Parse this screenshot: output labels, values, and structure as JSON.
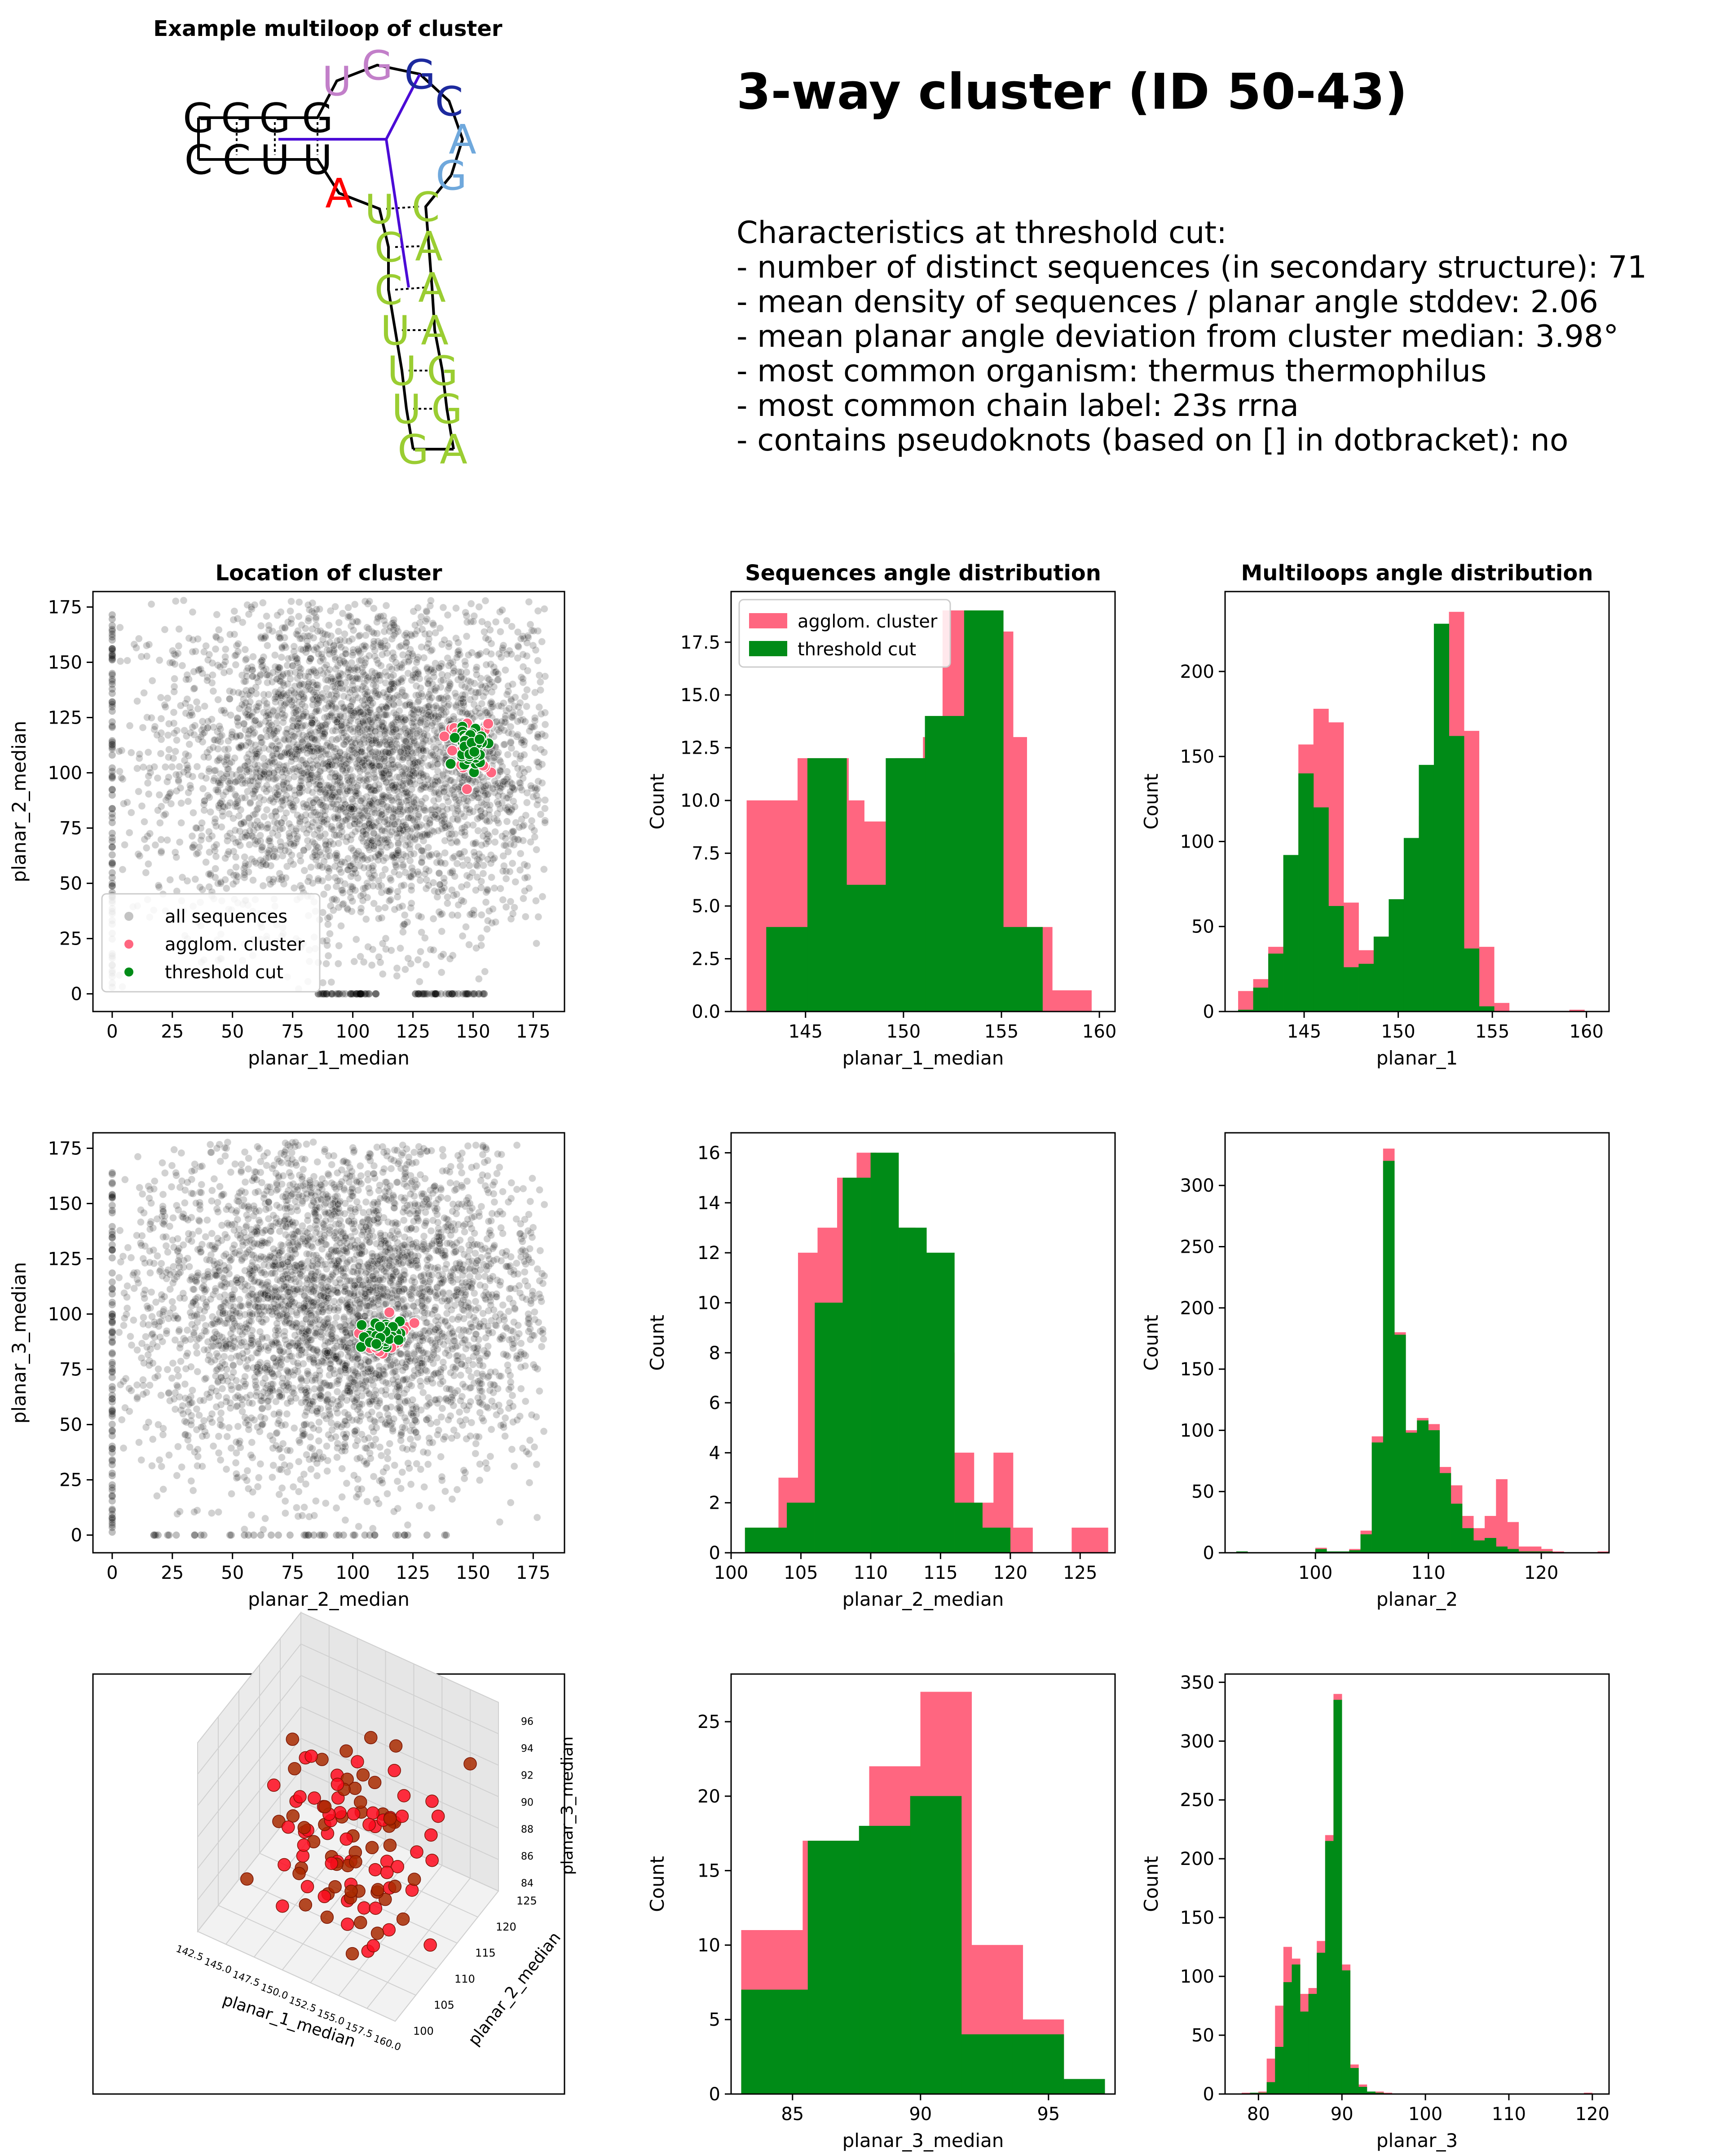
{
  "colors": {
    "agglom": "#ff6680",
    "threshold": "#008b17",
    "all": "#000000",
    "nt_black": "#000000",
    "nt_green": "#9acd32",
    "nt_purple": "#c27fc9",
    "nt_navy": "#1d2a9e",
    "nt_sky": "#6fa8dc",
    "nt_red": "#ff0000",
    "link": "#4b0bd6"
  },
  "header": {
    "title": "3-way cluster (ID 50-43)",
    "characteristics": [
      "Characteristics at threshold cut:",
      "- number of distinct sequences (in secondary structure): 71",
      "- mean density of sequences / planar angle stddev: 2.06",
      "- mean planar angle deviation from cluster median: 3.98°",
      "- most common organism: thermus thermophilus",
      "- most common chain label: 23s rrna",
      "- contains pseudoknots (based on [] in dotbracket): no"
    ]
  },
  "multiloop": {
    "title": "Example multiloop of cluster",
    "nucleotides": [
      {
        "t": "G",
        "c": "nt_black"
      },
      {
        "t": "G",
        "c": "nt_black"
      },
      {
        "t": "G",
        "c": "nt_black"
      },
      {
        "t": "G",
        "c": "nt_black"
      },
      {
        "t": "U",
        "c": "nt_purple"
      },
      {
        "t": "G",
        "c": "nt_purple"
      },
      {
        "t": "G",
        "c": "nt_navy"
      },
      {
        "t": "C",
        "c": "nt_navy"
      },
      {
        "t": "A",
        "c": "nt_sky"
      },
      {
        "t": "G",
        "c": "nt_sky"
      },
      {
        "t": "C",
        "c": "nt_black"
      },
      {
        "t": "C",
        "c": "nt_black"
      },
      {
        "t": "U",
        "c": "nt_black"
      },
      {
        "t": "U",
        "c": "nt_black"
      },
      {
        "t": "A",
        "c": "nt_red"
      },
      {
        "t": "U",
        "c": "nt_green"
      },
      {
        "t": "C",
        "c": "nt_green"
      },
      {
        "t": "C",
        "c": "nt_green"
      },
      {
        "t": "U",
        "c": "nt_green"
      },
      {
        "t": "U",
        "c": "nt_green"
      },
      {
        "t": "U",
        "c": "nt_green"
      },
      {
        "t": "G",
        "c": "nt_green"
      },
      {
        "t": "A",
        "c": "nt_green"
      },
      {
        "t": "G",
        "c": "nt_green"
      },
      {
        "t": "G",
        "c": "nt_green"
      },
      {
        "t": "A",
        "c": "nt_green"
      },
      {
        "t": "A",
        "c": "nt_green"
      },
      {
        "t": "A",
        "c": "nt_green"
      },
      {
        "t": "C",
        "c": "nt_green"
      }
    ]
  },
  "chart_data": [
    {
      "id": "scatter12",
      "type": "scatter",
      "title": "Location of cluster",
      "xlabel": "planar_1_median",
      "ylabel": "planar_2_median",
      "xlim": [
        -8,
        188
      ],
      "ylim": [
        -8,
        182
      ],
      "xticks": [
        0,
        25,
        50,
        75,
        100,
        125,
        150,
        175
      ],
      "yticks": [
        0,
        25,
        50,
        75,
        100,
        125,
        150,
        175
      ],
      "legend": {
        "placement": "lower-left",
        "entries": [
          "all sequences",
          "agglom. cluster",
          "threshold cut"
        ]
      },
      "background": {
        "center": [
          105,
          105
        ],
        "spread": [
          45,
          38
        ],
        "count": 4200,
        "zero_row": [
          [
            85,
            110
          ],
          [
            125,
            155
          ]
        ],
        "zero_col": [
          0,
          175
        ]
      },
      "cluster": {
        "center": [
          149,
          112
        ],
        "spread": [
          3.5,
          4.5
        ],
        "agglom_count": 40,
        "threshold_count": 55
      }
    },
    {
      "id": "scatter23",
      "type": "scatter",
      "title": "",
      "xlabel": "planar_2_median",
      "ylabel": "planar_3_median",
      "xlim": [
        -8,
        188
      ],
      "ylim": [
        -8,
        182
      ],
      "xticks": [
        0,
        25,
        50,
        75,
        100,
        125,
        150,
        175
      ],
      "yticks": [
        0,
        25,
        50,
        75,
        100,
        125,
        150,
        175
      ],
      "background": {
        "center": [
          95,
          105
        ],
        "spread": [
          45,
          40
        ],
        "count": 4200,
        "zero_row": [
          [
            15,
            140
          ]
        ],
        "zero_col": [
          0,
          165
        ]
      },
      "cluster": {
        "center": [
          112,
          90
        ],
        "spread": [
          4,
          3
        ],
        "agglom_count": 35,
        "threshold_count": 50
      }
    },
    {
      "id": "scatter3d",
      "type": "scatter",
      "title": "",
      "xlabel": "planar_1_median",
      "ylabel": "planar_2_median",
      "zlabel": "planar_3_median",
      "xticks": [
        "142.5",
        "145.0",
        "147.5",
        "150.0",
        "152.5",
        "155.0",
        "157.5",
        "160.0"
      ],
      "yticks": [
        "100",
        "105",
        "110",
        "115",
        "120",
        "125"
      ],
      "zticks": [
        "84",
        "86",
        "88",
        "90",
        "92",
        "94",
        "96"
      ],
      "xrange": [
        141,
        161
      ],
      "yrange": [
        98,
        127
      ],
      "zrange": [
        82,
        97
      ],
      "count": 110
    },
    {
      "id": "hist_seq1",
      "type": "bar",
      "title": "Sequences angle distribution",
      "xlabel": "planar_1_median",
      "ylabel": "Count",
      "xlim": [
        141.2,
        160.8
      ],
      "ylim": [
        0,
        19.9
      ],
      "xticks": [
        145,
        150,
        155,
        160
      ],
      "yticks": [
        0,
        2.5,
        5,
        7.5,
        10,
        12.5,
        15,
        17.5
      ],
      "ytick_labels": [
        "0.0",
        "2.5",
        "5.0",
        "7.5",
        "10.0",
        "12.5",
        "15.0",
        "17.5"
      ],
      "legend": {
        "placement": "top-left",
        "entries": [
          "agglom. cluster",
          "threshold cut"
        ]
      },
      "series": [
        {
          "name": "agglom. cluster",
          "edges": [
            142,
            143.2,
            144.6,
            145.9,
            147.2,
            148.0,
            149.6,
            151.0,
            152.0,
            153.5,
            155.6,
            156.3,
            157.6,
            159.6
          ],
          "values": [
            10,
            10,
            12,
            12,
            10,
            9,
            12,
            13,
            19,
            18,
            13,
            4,
            1
          ]
        },
        {
          "name": "threshold cut",
          "edges": [
            143,
            145.1,
            147.1,
            149.1,
            151.1,
            153.1,
            155.1,
            157.1
          ],
          "values": [
            4,
            12,
            6,
            12,
            14,
            19,
            4
          ]
        }
      ]
    },
    {
      "id": "hist_ml1",
      "type": "bar",
      "title": "Multiloops angle distribution",
      "xlabel": "planar_1",
      "ylabel": "Count",
      "xlim": [
        140.8,
        161.2
      ],
      "ylim": [
        0,
        247
      ],
      "xticks": [
        145,
        150,
        155,
        160
      ],
      "yticks": [
        0,
        50,
        100,
        150,
        200
      ],
      "series": [
        {
          "name": "agglom. cluster",
          "edges": [
            141.5,
            142.3,
            143.1,
            143.9,
            144.7,
            145.5,
            146.3,
            147.1,
            147.9,
            148.7,
            149.5,
            150.3,
            151.1,
            151.9,
            152.7,
            153.5,
            154.3,
            155.1,
            155.9,
            156.7,
            157.5,
            158.3,
            159.1,
            159.9
          ],
          "values": [
            12,
            19,
            38,
            78,
            157,
            178,
            170,
            64,
            36,
            30,
            42,
            68,
            115,
            190,
            235,
            165,
            38,
            5,
            0,
            0,
            0,
            0,
            1
          ]
        },
        {
          "name": "threshold cut",
          "edges": [
            141.5,
            142.3,
            143.1,
            143.9,
            144.7,
            145.5,
            146.3,
            147.1,
            147.9,
            148.7,
            149.5,
            150.3,
            151.1,
            151.9,
            152.7,
            153.5,
            154.3,
            155.1,
            155.9,
            156.7,
            157.5,
            158.3,
            159.1,
            159.9
          ],
          "values": [
            1,
            14,
            34,
            92,
            140,
            120,
            62,
            26,
            28,
            44,
            66,
            102,
            145,
            228,
            162,
            37,
            3,
            0,
            0,
            0,
            0,
            0,
            0
          ]
        }
      ]
    },
    {
      "id": "hist_seq2",
      "type": "bar",
      "title": "",
      "xlabel": "planar_2_median",
      "ylabel": "Count",
      "xlim": [
        100,
        127.5
      ],
      "ylim": [
        0,
        16.8
      ],
      "xticks": [
        100,
        105,
        110,
        115,
        120,
        125
      ],
      "yticks": [
        0,
        2,
        4,
        6,
        8,
        10,
        12,
        14,
        16
      ],
      "series": [
        {
          "name": "agglom. cluster",
          "edges": [
            101,
            103.4,
            104.8,
            106.2,
            107.6,
            109.0,
            110.4,
            111.8,
            113.2,
            114.6,
            116.0,
            117.4,
            118.8,
            120.2,
            121.6,
            123.0,
            124.4,
            125.8,
            127.0
          ],
          "values": [
            1,
            3,
            12,
            13,
            15,
            16,
            13,
            13,
            10,
            8,
            4,
            2,
            4,
            1,
            0,
            0,
            1,
            1
          ]
        },
        {
          "name": "threshold cut",
          "edges": [
            101,
            104,
            106,
            108,
            110,
            112,
            114,
            116,
            118,
            120
          ],
          "values": [
            1,
            2,
            10,
            15,
            16,
            13,
            12,
            2,
            1,
            1
          ]
        }
      ]
    },
    {
      "id": "hist_ml2",
      "type": "bar",
      "title": "",
      "xlabel": "planar_2",
      "ylabel": "Count",
      "xlim": [
        92,
        126
      ],
      "ylim": [
        0,
        343
      ],
      "xticks": [
        100,
        110,
        120
      ],
      "yticks": [
        0,
        50,
        100,
        150,
        200,
        250,
        300
      ],
      "series": [
        {
          "name": "agglom. cluster",
          "edges": [
            93,
            94,
            95,
            96,
            97,
            98,
            99,
            100,
            101,
            102,
            103,
            104,
            105,
            106,
            107,
            108,
            109,
            110,
            111,
            112,
            113,
            114,
            115,
            116,
            117,
            118,
            119,
            120,
            121,
            122,
            123,
            124,
            125,
            126
          ],
          "values": [
            1,
            0,
            0,
            0,
            0,
            0,
            0,
            4,
            1,
            1,
            3,
            18,
            95,
            330,
            180,
            100,
            110,
            105,
            70,
            55,
            30,
            20,
            30,
            60,
            25,
            5,
            5,
            3,
            1,
            0,
            0,
            0,
            1
          ]
        },
        {
          "name": "threshold cut",
          "edges": [
            93,
            94,
            95,
            96,
            97,
            98,
            99,
            100,
            101,
            102,
            103,
            104,
            105,
            106,
            107,
            108,
            109,
            110,
            111,
            112,
            113,
            114,
            115,
            116,
            117,
            118,
            119,
            120,
            121,
            122,
            123,
            124,
            125,
            126
          ],
          "values": [
            1,
            0,
            0,
            0,
            0,
            0,
            0,
            3,
            1,
            1,
            2,
            15,
            90,
            320,
            178,
            98,
            108,
            100,
            65,
            40,
            20,
            10,
            12,
            5,
            3,
            1,
            1,
            1,
            0,
            0,
            0,
            0,
            0
          ]
        }
      ]
    },
    {
      "id": "hist_seq3",
      "type": "bar",
      "title": "",
      "xlabel": "planar_3_median",
      "ylabel": "Count",
      "xlim": [
        82.6,
        97.6
      ],
      "ylim": [
        0,
        28.2
      ],
      "xticks": [
        85,
        90,
        95
      ],
      "yticks": [
        0,
        5,
        10,
        15,
        20,
        25
      ],
      "series": [
        {
          "name": "agglom. cluster",
          "edges": [
            83,
            85.4,
            88,
            90,
            92,
            94,
            95.6,
            97.2
          ],
          "values": [
            11,
            17,
            22,
            27,
            10,
            5,
            1
          ]
        },
        {
          "name": "threshold cut",
          "edges": [
            83,
            85.6,
            87.6,
            89.6,
            91.6,
            93.6,
            95.6,
            97.2
          ],
          "values": [
            7,
            17,
            18,
            20,
            4,
            4,
            1
          ]
        }
      ]
    },
    {
      "id": "hist_ml3",
      "type": "bar",
      "title": "",
      "xlabel": "planar_3",
      "ylabel": "Count",
      "xlim": [
        76,
        122
      ],
      "ylim": [
        0,
        357
      ],
      "xticks": [
        80,
        90,
        100,
        110,
        120
      ],
      "yticks": [
        0,
        50,
        100,
        150,
        200,
        250,
        300,
        350
      ],
      "series": [
        {
          "name": "agglom. cluster",
          "edges": [
            78,
            79,
            80,
            81,
            82,
            83,
            84,
            85,
            86,
            87,
            88,
            89,
            90,
            91,
            92,
            93,
            94,
            95,
            96,
            97,
            98,
            99,
            100,
            101,
            102,
            103,
            104,
            105,
            106,
            107,
            108,
            109,
            110,
            111,
            112,
            113,
            114,
            115,
            116,
            117,
            118,
            119,
            120
          ],
          "values": [
            1,
            1,
            2,
            30,
            75,
            125,
            115,
            85,
            90,
            130,
            220,
            340,
            110,
            25,
            8,
            2,
            2,
            1,
            0,
            0,
            0,
            0,
            0,
            0,
            0,
            0,
            0,
            0,
            0,
            0,
            0,
            0,
            0,
            0,
            0,
            0,
            0,
            0,
            0,
            0,
            0,
            1
          ]
        },
        {
          "name": "threshold cut",
          "edges": [
            78,
            79,
            80,
            81,
            82,
            83,
            84,
            85,
            86,
            87,
            88,
            89,
            90,
            91,
            92,
            93,
            94,
            95,
            96,
            97,
            98,
            99,
            100,
            101,
            102,
            103,
            104,
            105,
            106,
            107,
            108,
            109,
            110,
            111,
            112,
            113,
            114,
            115,
            116,
            117,
            118,
            119,
            120
          ],
          "values": [
            0,
            1,
            1,
            10,
            40,
            95,
            110,
            70,
            85,
            120,
            215,
            335,
            105,
            22,
            6,
            2,
            1,
            0,
            0,
            0,
            0,
            0,
            0,
            0,
            0,
            0,
            0,
            0,
            0,
            0,
            0,
            0,
            0,
            0,
            0,
            0,
            0,
            0,
            0,
            0,
            0,
            0
          ]
        }
      ]
    }
  ]
}
